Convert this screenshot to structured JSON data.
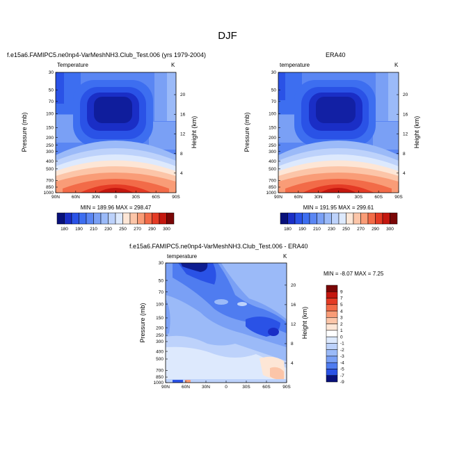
{
  "page_title": "DJF",
  "chart_data": [
    {
      "type": "heatmap",
      "case_title": "f.e15a6.FAMIPC5.ne0np4-VarMeshNH3.Club_Test.006 (yrs 1979-2004)",
      "left_label": "Temperature",
      "right_label": "K",
      "xlabel": "",
      "ylabel": "Pressure (mb)",
      "ylabel_right": "Height (km)",
      "x_ticks": [
        "90N",
        "60N",
        "30N",
        "0",
        "30S",
        "60S",
        "90S"
      ],
      "y_ticks": [
        "30",
        "50",
        "70",
        "100",
        "150",
        "200",
        "250",
        "300",
        "400",
        "500",
        "700",
        "850",
        "1000"
      ],
      "y_ticks_right": [
        "20",
        "16",
        "12",
        "8",
        "4"
      ],
      "stats": "MIN = 189.96  MAX = 298.47",
      "colorbar_labels": [
        "180",
        "190",
        "210",
        "230",
        "250",
        "270",
        "290",
        "300"
      ]
    },
    {
      "type": "heatmap",
      "case_title": "ERA40",
      "left_label": "temperature",
      "right_label": "K",
      "xlabel": "",
      "ylabel": "Pressure (mb)",
      "ylabel_right": "Height (km)",
      "x_ticks": [
        "90N",
        "60N",
        "30N",
        "0",
        "30S",
        "60S",
        "90S"
      ],
      "y_ticks": [
        "30",
        "50",
        "70",
        "100",
        "150",
        "200",
        "250",
        "300",
        "400",
        "500",
        "700",
        "850",
        "1000"
      ],
      "y_ticks_right": [
        "20",
        "16",
        "12",
        "8",
        "4"
      ],
      "stats": "MIN = 191.95  MAX = 299.61",
      "colorbar_labels": [
        "180",
        "190",
        "210",
        "230",
        "250",
        "270",
        "290",
        "300"
      ]
    },
    {
      "type": "heatmap",
      "case_title": "f.e15a6.FAMIPC5.ne0np4-VarMeshNH3.Club_Test.006 - ERA40",
      "left_label": "temperature",
      "right_label": "K",
      "xlabel": "",
      "ylabel": "Pressure (mb)",
      "ylabel_right": "Height (km)",
      "x_ticks": [
        "90N",
        "60N",
        "30N",
        "0",
        "30S",
        "60S",
        "90S"
      ],
      "y_ticks": [
        "30",
        "50",
        "70",
        "100",
        "150",
        "200",
        "250",
        "300",
        "400",
        "500",
        "700",
        "850",
        "1000"
      ],
      "y_ticks_right": [
        "20",
        "16",
        "12",
        "8",
        "4"
      ],
      "stats": "MIN = -8.07  MAX =  7.25",
      "colorbar_labels": [
        "9",
        "7",
        "5",
        "4",
        "3",
        "2",
        "1",
        "0",
        "-1",
        "-2",
        "-3",
        "-4",
        "-5",
        "-7",
        "-9"
      ]
    }
  ],
  "colors": {
    "temp_scale": [
      "#08107a",
      "#1a2ec6",
      "#2a52e6",
      "#3d6ef0",
      "#5a86f3",
      "#7aa0f5",
      "#9bbaf8",
      "#bdd2fb",
      "#dde9fd",
      "#fde6d6",
      "#fcc5a8",
      "#f99c77",
      "#f26b48",
      "#e43b25",
      "#c4170f",
      "#7a0606"
    ],
    "diff_scale": [
      "#7a0606",
      "#c4170f",
      "#e43b25",
      "#f26b48",
      "#f99c77",
      "#fcc5a8",
      "#fde6d6",
      "#ffffff",
      "#dde9fd",
      "#bdd2fb",
      "#9bbaf8",
      "#7aa0f5",
      "#4f7cf0",
      "#2a52e6",
      "#08107a"
    ]
  }
}
